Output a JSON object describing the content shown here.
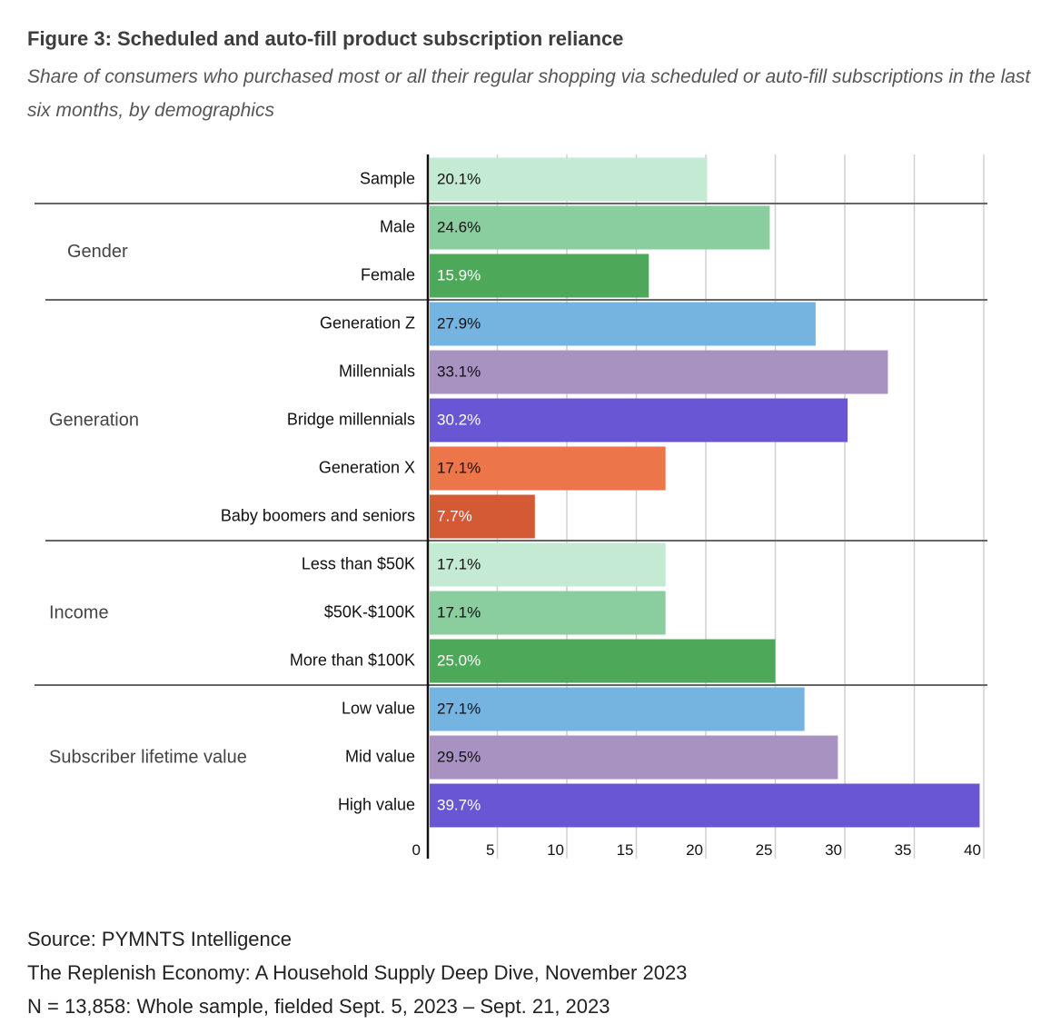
{
  "header": {
    "title": "Figure 3: Scheduled and auto-fill product subscription reliance",
    "subtitle": "Share of consumers who purchased most or all their regular shopping via scheduled or auto-fill subscriptions in the last six months, by demographics"
  },
  "chart_data": {
    "type": "bar",
    "orientation": "horizontal",
    "title": "Figure 3: Scheduled and auto-fill product subscription reliance",
    "subtitle": "Share of consumers who purchased most or all their regular shopping via scheduled or auto-fill subscriptions in the last six months, by demographics",
    "xlabel": "",
    "ylabel": "",
    "xlim": [
      0,
      40
    ],
    "xticks": [
      0,
      5,
      10,
      15,
      20,
      25,
      30,
      35,
      40
    ],
    "grid": true,
    "categories": [
      "Sample",
      "Male",
      "Female",
      "Generation Z",
      "Millennials",
      "Bridge millennials",
      "Generation X",
      "Baby boomers and seniors",
      "Less than $50K",
      "$50K-$100K",
      "More than $100K",
      "Low value",
      "Mid value",
      "High value"
    ],
    "values": [
      20.1,
      24.6,
      15.9,
      27.9,
      33.1,
      30.2,
      17.1,
      7.7,
      17.1,
      17.1,
      25.0,
      27.1,
      29.5,
      39.7
    ],
    "value_labels": [
      "20.1%",
      "24.6%",
      "15.9%",
      "27.9%",
      "33.1%",
      "30.2%",
      "17.1%",
      "7.7%",
      "17.1%",
      "17.1%",
      "25.0%",
      "27.1%",
      "29.5%",
      "39.7%"
    ],
    "bar_colors": [
      "#c4ead4",
      "#8acea0",
      "#4ea85a",
      "#75b4e0",
      "#a892c2",
      "#6856d4",
      "#ec7549",
      "#d45a35",
      "#c4ead4",
      "#8acea0",
      "#4ea85a",
      "#75b4e0",
      "#a892c2",
      "#6856d4"
    ],
    "label_colors": [
      "#111111",
      "#111111",
      "#ffffff",
      "#111111",
      "#111111",
      "#ffffff",
      "#111111",
      "#ffffff",
      "#111111",
      "#111111",
      "#ffffff",
      "#111111",
      "#111111",
      "#ffffff"
    ],
    "groups": [
      {
        "name": "",
        "rows": [
          0
        ]
      },
      {
        "name": "Gender",
        "rows": [
          1,
          2
        ]
      },
      {
        "name": "Generation",
        "rows": [
          3,
          4,
          5,
          6,
          7
        ]
      },
      {
        "name": "Income",
        "rows": [
          8,
          9,
          10
        ]
      },
      {
        "name": "Subscriber lifetime value",
        "rows": [
          11,
          12,
          13
        ]
      }
    ]
  },
  "footer": {
    "source": "Source: PYMNTS Intelligence",
    "report": "The Replenish Economy: A Household Supply Deep Dive, November 2023",
    "sample": "N = 13,858: Whole sample, fielded Sept. 5, 2023 – Sept. 21, 2023"
  }
}
